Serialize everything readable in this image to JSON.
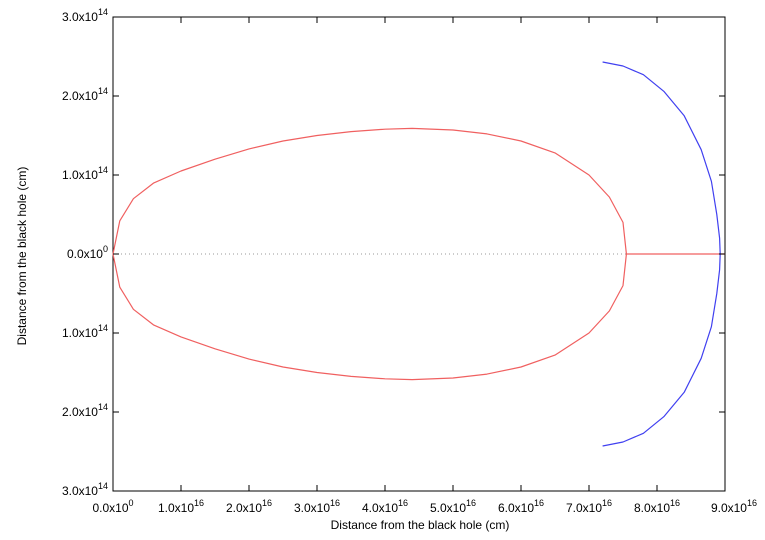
{
  "chart_data": {
    "type": "line",
    "title": "",
    "xlabel": "Distance from the black hole (cm)",
    "ylabel": "Distance from the black hole (cm)",
    "xlim": [
      0,
      9e+16
    ],
    "ylim": [
      -300000000000000.0,
      300000000000000.0
    ],
    "grid": false,
    "legend": "none",
    "x_ticks": [
      {
        "value": 0,
        "mantissa": "0.0x10",
        "exp": "0"
      },
      {
        "value": 1e+16,
        "mantissa": "1.0x10",
        "exp": "16"
      },
      {
        "value": 2e+16,
        "mantissa": "2.0x10",
        "exp": "16"
      },
      {
        "value": 3e+16,
        "mantissa": "3.0x10",
        "exp": "16"
      },
      {
        "value": 4e+16,
        "mantissa": "4.0x10",
        "exp": "16"
      },
      {
        "value": 5e+16,
        "mantissa": "5.0x10",
        "exp": "16"
      },
      {
        "value": 6e+16,
        "mantissa": "6.0x10",
        "exp": "16"
      },
      {
        "value": 7e+16,
        "mantissa": "7.0x10",
        "exp": "16"
      },
      {
        "value": 8e+16,
        "mantissa": "8.0x10",
        "exp": "16"
      },
      {
        "value": 9e+16,
        "mantissa": "9.0x10",
        "exp": "16"
      }
    ],
    "y_ticks": [
      {
        "value": 300000000000000.0,
        "mantissa": "3.0x10",
        "exp": "14"
      },
      {
        "value": 200000000000000.0,
        "mantissa": "2.0x10",
        "exp": "14"
      },
      {
        "value": 100000000000000.0,
        "mantissa": "1.0x10",
        "exp": "14"
      },
      {
        "value": 0,
        "mantissa": "0.0x10",
        "exp": "0"
      },
      {
        "value": -100000000000000.0,
        "mantissa": "1.0x10",
        "exp": "14"
      },
      {
        "value": -200000000000000.0,
        "mantissa": "2.0x10",
        "exp": "14"
      },
      {
        "value": -300000000000000.0,
        "mantissa": "3.0x10",
        "exp": "14"
      }
    ],
    "series": [
      {
        "color": "#f06060",
        "x": [
          0,
          1000000000000000.0,
          3000000000000000.0,
          6000000000000000.0,
          1e+16,
          1.5e+16,
          2e+16,
          2.5e+16,
          3e+16,
          3.5e+16,
          4e+16,
          4.4e+16,
          5e+16,
          5.5e+16,
          6e+16,
          6.5e+16,
          7e+16,
          7.3e+16,
          7.5e+16,
          7.55e+16,
          7.5e+16,
          7.3e+16,
          7e+16,
          6.5e+16,
          6e+16,
          5.5e+16,
          5e+16,
          4.4e+16,
          4e+16,
          3.5e+16,
          3e+16,
          2.5e+16,
          2e+16,
          1.5e+16,
          1e+16,
          6000000000000000.0,
          3000000000000000.0,
          1000000000000000.0,
          0
        ],
        "y": [
          0,
          42000000000000.0,
          70000000000000.0,
          90000000000000.0,
          105000000000000.0,
          120000000000000.0,
          133000000000000.0,
          143000000000000.0,
          150000000000000.0,
          155000000000000.0,
          158000000000000.0,
          159000000000000.0,
          157000000000000.0,
          152000000000000.0,
          143000000000000.0,
          128000000000000.0,
          100000000000000.0,
          72000000000000.0,
          40000000000000.0,
          0,
          -40000000000000.0,
          -72000000000000.0,
          -100000000000000.0,
          -128000000000000.0,
          -143000000000000.0,
          -152000000000000.0,
          -157000000000000.0,
          -159000000000000.0,
          -158000000000000.0,
          -155000000000000.0,
          -150000000000000.0,
          -143000000000000.0,
          -133000000000000.0,
          -120000000000000.0,
          -105000000000000.0,
          -90000000000000.0,
          -70000000000000.0,
          -42000000000000.0,
          0
        ]
      },
      {
        "color": "#f06060",
        "x": [
          7.55e+16,
          9e+16
        ],
        "y": [
          0,
          0
        ]
      },
      {
        "color": "#4040f0",
        "x": [
          7.2e+16,
          7.5e+16,
          7.8e+16,
          8.1e+16,
          8.4e+16,
          8.65e+16,
          8.8e+16,
          8.88e+16,
          8.92e+16,
          8.93e+16,
          8.92e+16,
          8.88e+16,
          8.8e+16,
          8.65e+16,
          8.4e+16,
          8.1e+16,
          7.8e+16,
          7.5e+16,
          7.2e+16
        ],
        "y": [
          243000000000000.0,
          238000000000000.0,
          227000000000000.0,
          206000000000000.0,
          175000000000000.0,
          132000000000000.0,
          92000000000000.0,
          50000000000000.0,
          20000000000000.0,
          0,
          -20000000000000.0,
          -50000000000000.0,
          -92000000000000.0,
          -132000000000000.0,
          -175000000000000.0,
          -206000000000000.0,
          -227000000000000.0,
          -238000000000000.0,
          -243000000000000.0
        ]
      }
    ],
    "zero_line": {
      "y": 0,
      "style": "dotted",
      "color": "#999999"
    }
  }
}
